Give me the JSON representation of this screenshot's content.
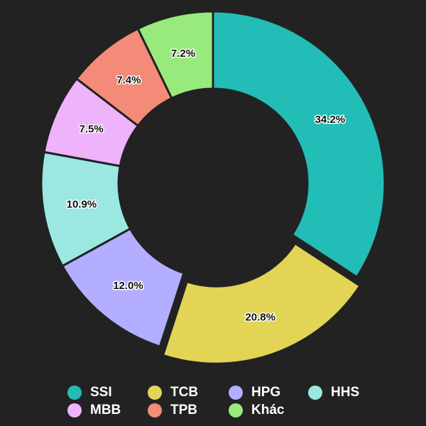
{
  "chart_data": {
    "type": "pie",
    "donut": true,
    "categories": [
      "SSI",
      "TCB",
      "HPG",
      "HHS",
      "MBB",
      "TPB",
      "Khác"
    ],
    "values": [
      34.2,
      20.8,
      12.0,
      10.9,
      7.5,
      7.4,
      7.2
    ],
    "value_labels": [
      "34.2%",
      "20.8%",
      "12.0%",
      "10.9%",
      "7.5%",
      "7.4%",
      "7.2%"
    ],
    "colors": [
      "#22bdb6",
      "#e2d455",
      "#b3aeff",
      "#9be8e2",
      "#efb3fb",
      "#f48a78",
      "#98ea7c"
    ],
    "exploded": [
      "TCB"
    ],
    "legend_position": "bottom",
    "title": "",
    "background": "#222222"
  }
}
